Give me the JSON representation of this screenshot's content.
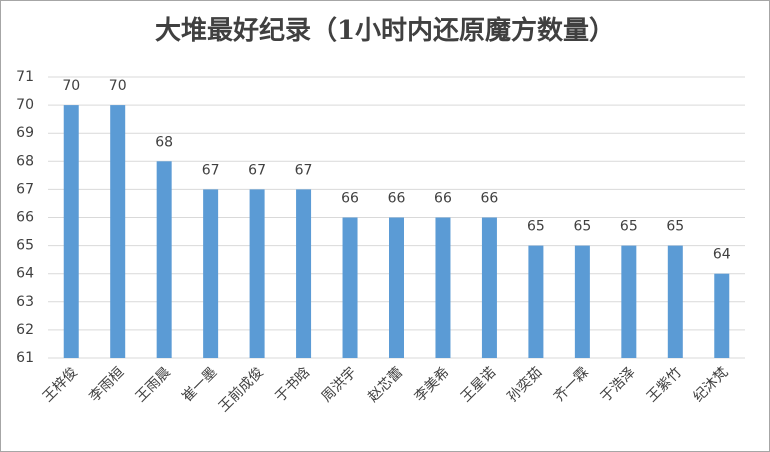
{
  "chart_data": {
    "type": "bar",
    "title": "大堆最好纪录（1小时内还原魔方数量）",
    "categories": [
      "王梓俊",
      "李雨桓",
      "王雨晨",
      "崔一墨",
      "王前成俊",
      "于书晗",
      "周洪宇",
      "赵芯蕾",
      "李美希",
      "王星诺",
      "孙奕茹",
      "齐一霖",
      "于浩泽",
      "王紫竹",
      "纪沐梵"
    ],
    "values": [
      70,
      70,
      68,
      67,
      67,
      67,
      66,
      66,
      66,
      66,
      65,
      65,
      65,
      65,
      64
    ],
    "color": "#5b9bd5",
    "ylim": [
      61,
      71
    ],
    "yticks": [
      61,
      62,
      63,
      64,
      65,
      66,
      67,
      68,
      69,
      70,
      71
    ],
    "grid": true,
    "data_labels": true
  }
}
